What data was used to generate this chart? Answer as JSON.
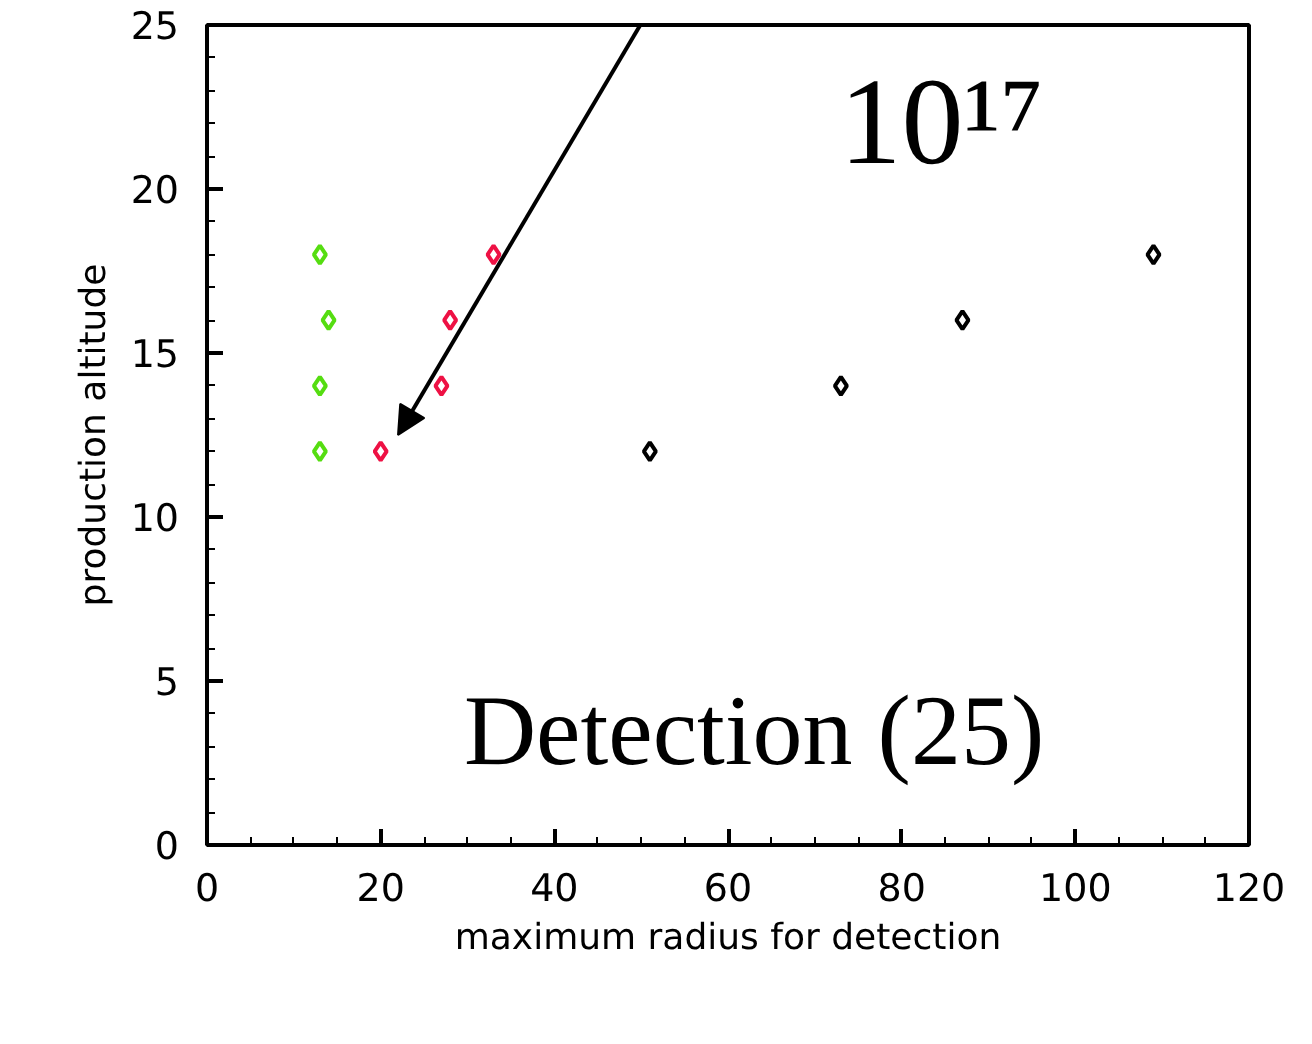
{
  "chart_data": {
    "type": "scatter",
    "xlabel": "maximum radius for detection",
    "ylabel": "production altitude",
    "annotations": [
      "10¹⁷",
      "Detection (25)"
    ],
    "series": [
      {
        "color": "#55dd11",
        "x": [
          13,
          13,
          14,
          13
        ],
        "values": [
          12,
          14,
          16,
          18
        ]
      },
      {
        "color": "#ee1144",
        "x": [
          20,
          27,
          28,
          33
        ],
        "values": [
          12,
          14,
          16,
          18
        ]
      },
      {
        "color": "#000000",
        "x": [
          51,
          73,
          87,
          109
        ],
        "values": [
          12,
          14,
          16,
          18
        ]
      }
    ],
    "xlim": [
      0,
      120
    ],
    "xticks": [
      0,
      20,
      40,
      60,
      80,
      100,
      120
    ],
    "ylim": [
      0,
      25
    ],
    "yticks": [
      0,
      5,
      10,
      15,
      20,
      25
    ],
    "marker": "diamond",
    "grid": false
  }
}
